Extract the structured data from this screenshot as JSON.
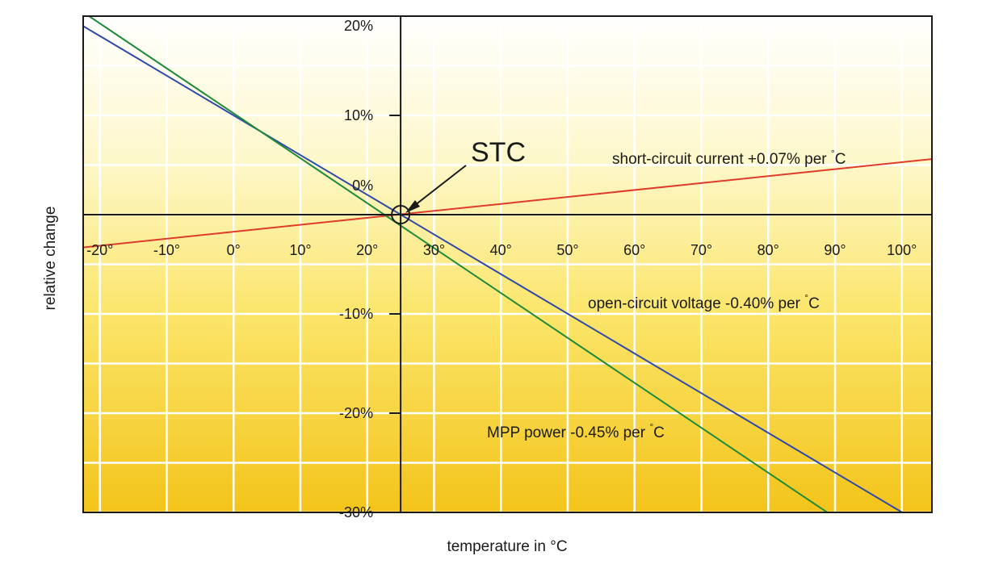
{
  "chart_data": {
    "type": "line",
    "title": "",
    "xlabel": "temperature in °C",
    "ylabel": "relative change",
    "xlim": [
      -22.5,
      104.5
    ],
    "ylim": [
      -30,
      20
    ],
    "grid": true,
    "x_ticks": [
      -20,
      -10,
      0,
      10,
      20,
      30,
      40,
      50,
      60,
      70,
      80,
      90,
      100
    ],
    "x_tick_labels": [
      "-20°",
      "-10°",
      "0°",
      "10°",
      "20°",
      "30°",
      "40°",
      "50°",
      "60°",
      "70°",
      "80°",
      "90°",
      "100°"
    ],
    "y_ticks": [
      20,
      10,
      0,
      -10,
      -20,
      -30
    ],
    "y_tick_labels": [
      "20%",
      "10%",
      "0%",
      "-10%",
      "-20%",
      "-30%"
    ],
    "annotation": {
      "text": "STC",
      "x": 25,
      "y": 0
    },
    "series": [
      {
        "name": "short-circuit current +0.07% per °C",
        "label_main": "short-circuit current +0.07% per ",
        "label_unit": "C",
        "color": "#e03a2a",
        "x": [
          -22.5,
          104.5
        ],
        "values": [
          -3.3,
          5.6
        ]
      },
      {
        "name": "open-circuit voltage -0.40% per °C",
        "label_main": "open-circuit voltage -0.40% per ",
        "label_unit": "C",
        "color": "#2f49a8",
        "x": [
          -22.5,
          100.8
        ],
        "values": [
          19,
          -30.3
        ]
      },
      {
        "name": "MPP power -0.45% per °C",
        "label_main": "MPP power -0.45% per ",
        "label_unit": "C",
        "color": "#1f8a3a",
        "x": [
          -22.5,
          89.5
        ],
        "values": [
          20.4,
          -30.3
        ]
      }
    ],
    "colors": {
      "frame": "#1a1a1a",
      "grid": "#ffffff",
      "bg_top": "#ffffff",
      "bg_mid": "#fdf09a",
      "bg_bottom": "#f4c81c"
    }
  }
}
